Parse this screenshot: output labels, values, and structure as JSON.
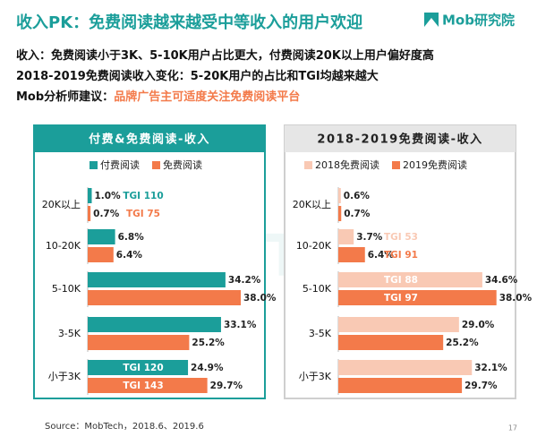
{
  "header": {
    "title": "收入PK：免费阅读越来越受中等收入的用户欢迎",
    "logo": "Mob研究院",
    "lines": [
      {
        "label": "收入：",
        "text": "免费阅读小于3K、5-10K用户占比更大，付费阅读20K以上用户偏好度高"
      },
      {
        "label": "2018-2019免费阅读收入变化：",
        "text": "5-20K用户的占比和TGI均越来越大"
      },
      {
        "label": "Mob分析师建议：",
        "text": "品牌广告主可适度关注免费阅读平台"
      }
    ]
  },
  "watermark": "MobTech",
  "chart_data": [
    {
      "type": "hbar",
      "title": "付费&免费阅读-收入",
      "categories": [
        "20K以上",
        "10-20K",
        "5-10K",
        "3-5K",
        "小于3K"
      ],
      "xlim": [
        0,
        40
      ],
      "series": [
        {
          "name": "付费阅读",
          "color": "#1b9e9a",
          "values": [
            1.0,
            6.8,
            34.2,
            33.1,
            24.9
          ],
          "value_labels": [
            "1.0%",
            "6.8%",
            "34.2%",
            "33.1%",
            "24.9%"
          ],
          "annotations": [
            "TGI 110",
            null,
            null,
            null,
            "TGI 120"
          ]
        },
        {
          "name": "免费阅读",
          "color": "#f37a4a",
          "values": [
            0.7,
            6.4,
            38.0,
            25.2,
            29.7
          ],
          "value_labels": [
            "0.7%",
            "6.4%",
            "38.0%",
            "25.2%",
            "29.7%"
          ],
          "annotations": [
            "TGI 75",
            null,
            null,
            null,
            "TGI 143"
          ]
        }
      ]
    },
    {
      "type": "hbar",
      "title": "2018-2019免费阅读-收入",
      "categories": [
        "20K以上",
        "10-20K",
        "5-10K",
        "3-5K",
        "小于3K"
      ],
      "xlim": [
        0,
        40
      ],
      "series": [
        {
          "name": "2018免费阅读",
          "color": "#f9c9b4",
          "values": [
            0.6,
            3.7,
            34.6,
            29.0,
            32.1
          ],
          "value_labels": [
            "0.6%",
            "3.7%",
            "34.6%",
            "29.0%",
            "32.1%"
          ],
          "annotations": [
            null,
            "TGI 53",
            "TGI 88",
            null,
            null
          ]
        },
        {
          "name": "2019免费阅读",
          "color": "#f37a4a",
          "values": [
            0.7,
            6.4,
            38.0,
            25.2,
            29.7
          ],
          "value_labels": [
            "0.7%",
            "6.4%",
            "38.0%",
            "25.2%",
            "29.7%"
          ],
          "annotations": [
            null,
            "TGI 91",
            "TGI 97",
            null,
            null
          ]
        }
      ]
    }
  ],
  "footer": {
    "source": "Source：MobTech，2018.6、2019.6",
    "page": "17"
  }
}
